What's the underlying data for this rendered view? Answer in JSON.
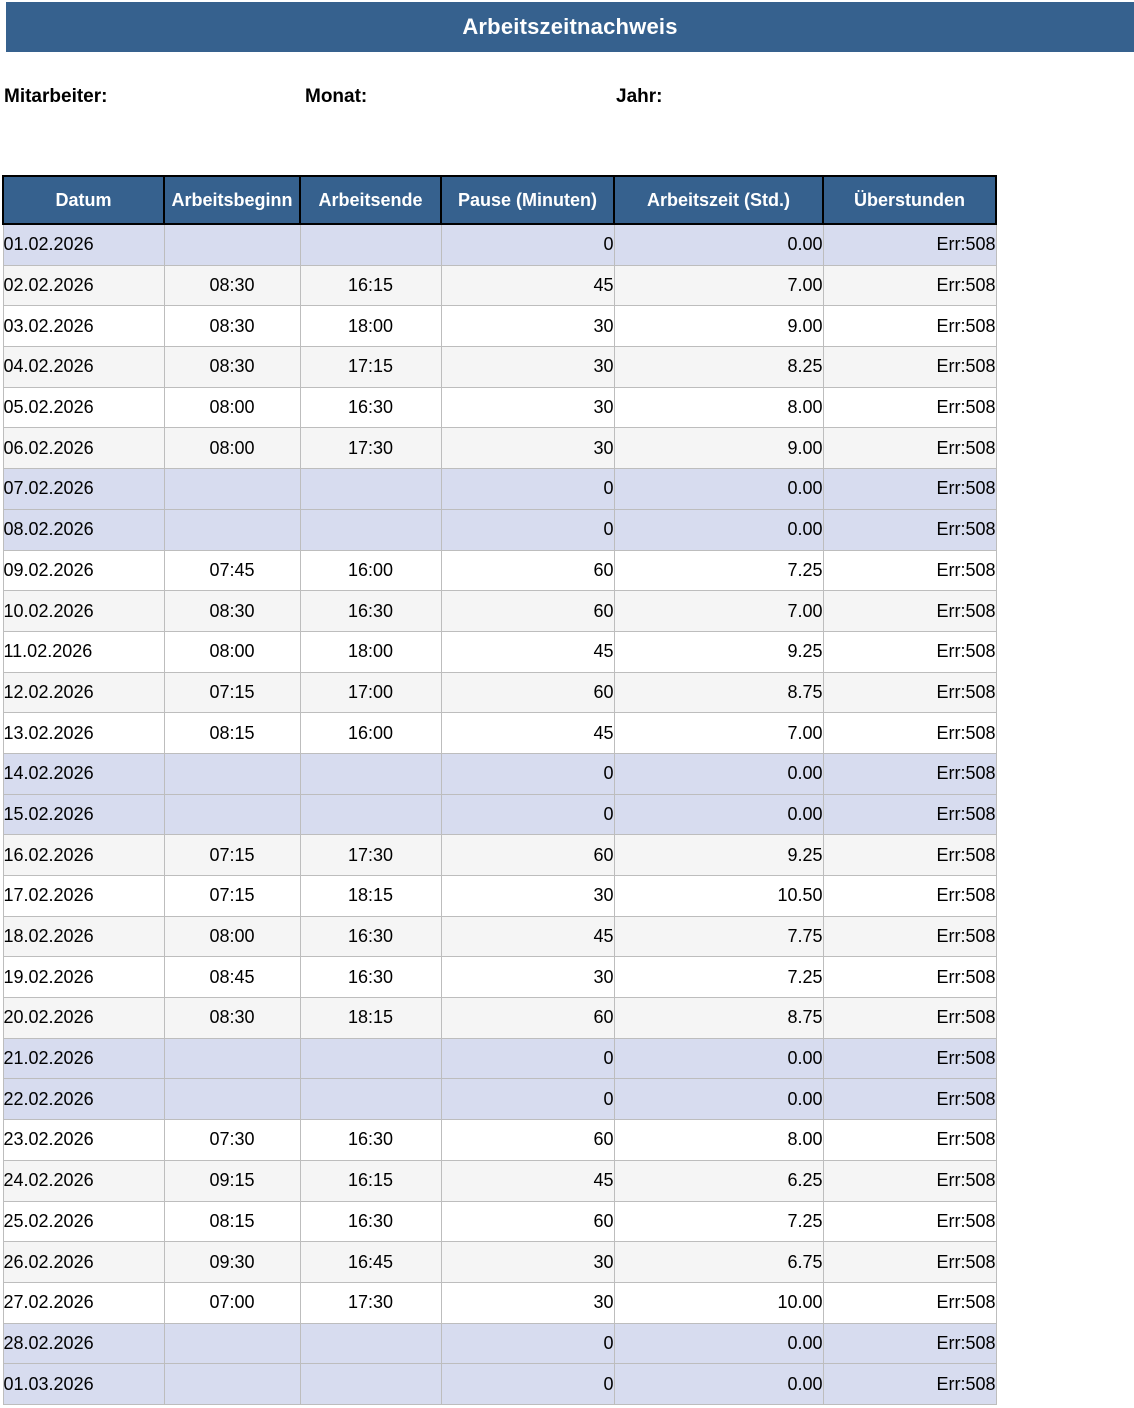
{
  "title": "Arbeitszeitnachweis",
  "fields": {
    "mitarbeiter": "Mitarbeiter:",
    "monat": "Monat:",
    "jahr": "Jahr:"
  },
  "colors": {
    "banner_blue": "#36618E",
    "weekend_row": "#D7DCEF",
    "stripe_row": "#F5F5F5",
    "header_text": "#FFFFFF"
  },
  "table": {
    "columns": [
      "Datum",
      "Arbeitsbeginn",
      "Arbeitsende",
      "Pause (Minuten)",
      "Arbeitszeit (Std.)",
      "Überstunden"
    ],
    "rows": [
      {
        "date": "01.02.2026",
        "begin": "",
        "end": "",
        "pause": "0",
        "hours": "0.00",
        "overtime": "Err:508",
        "weekend": true
      },
      {
        "date": "02.02.2026",
        "begin": "08:30",
        "end": "16:15",
        "pause": "45",
        "hours": "7.00",
        "overtime": "Err:508",
        "weekend": false
      },
      {
        "date": "03.02.2026",
        "begin": "08:30",
        "end": "18:00",
        "pause": "30",
        "hours": "9.00",
        "overtime": "Err:508",
        "weekend": false
      },
      {
        "date": "04.02.2026",
        "begin": "08:30",
        "end": "17:15",
        "pause": "30",
        "hours": "8.25",
        "overtime": "Err:508",
        "weekend": false
      },
      {
        "date": "05.02.2026",
        "begin": "08:00",
        "end": "16:30",
        "pause": "30",
        "hours": "8.00",
        "overtime": "Err:508",
        "weekend": false
      },
      {
        "date": "06.02.2026",
        "begin": "08:00",
        "end": "17:30",
        "pause": "30",
        "hours": "9.00",
        "overtime": "Err:508",
        "weekend": false
      },
      {
        "date": "07.02.2026",
        "begin": "",
        "end": "",
        "pause": "0",
        "hours": "0.00",
        "overtime": "Err:508",
        "weekend": true
      },
      {
        "date": "08.02.2026",
        "begin": "",
        "end": "",
        "pause": "0",
        "hours": "0.00",
        "overtime": "Err:508",
        "weekend": true
      },
      {
        "date": "09.02.2026",
        "begin": "07:45",
        "end": "16:00",
        "pause": "60",
        "hours": "7.25",
        "overtime": "Err:508",
        "weekend": false
      },
      {
        "date": "10.02.2026",
        "begin": "08:30",
        "end": "16:30",
        "pause": "60",
        "hours": "7.00",
        "overtime": "Err:508",
        "weekend": false
      },
      {
        "date": "11.02.2026",
        "begin": "08:00",
        "end": "18:00",
        "pause": "45",
        "hours": "9.25",
        "overtime": "Err:508",
        "weekend": false
      },
      {
        "date": "12.02.2026",
        "begin": "07:15",
        "end": "17:00",
        "pause": "60",
        "hours": "8.75",
        "overtime": "Err:508",
        "weekend": false
      },
      {
        "date": "13.02.2026",
        "begin": "08:15",
        "end": "16:00",
        "pause": "45",
        "hours": "7.00",
        "overtime": "Err:508",
        "weekend": false
      },
      {
        "date": "14.02.2026",
        "begin": "",
        "end": "",
        "pause": "0",
        "hours": "0.00",
        "overtime": "Err:508",
        "weekend": true
      },
      {
        "date": "15.02.2026",
        "begin": "",
        "end": "",
        "pause": "0",
        "hours": "0.00",
        "overtime": "Err:508",
        "weekend": true
      },
      {
        "date": "16.02.2026",
        "begin": "07:15",
        "end": "17:30",
        "pause": "60",
        "hours": "9.25",
        "overtime": "Err:508",
        "weekend": false
      },
      {
        "date": "17.02.2026",
        "begin": "07:15",
        "end": "18:15",
        "pause": "30",
        "hours": "10.50",
        "overtime": "Err:508",
        "weekend": false
      },
      {
        "date": "18.02.2026",
        "begin": "08:00",
        "end": "16:30",
        "pause": "45",
        "hours": "7.75",
        "overtime": "Err:508",
        "weekend": false
      },
      {
        "date": "19.02.2026",
        "begin": "08:45",
        "end": "16:30",
        "pause": "30",
        "hours": "7.25",
        "overtime": "Err:508",
        "weekend": false
      },
      {
        "date": "20.02.2026",
        "begin": "08:30",
        "end": "18:15",
        "pause": "60",
        "hours": "8.75",
        "overtime": "Err:508",
        "weekend": false
      },
      {
        "date": "21.02.2026",
        "begin": "",
        "end": "",
        "pause": "0",
        "hours": "0.00",
        "overtime": "Err:508",
        "weekend": true
      },
      {
        "date": "22.02.2026",
        "begin": "",
        "end": "",
        "pause": "0",
        "hours": "0.00",
        "overtime": "Err:508",
        "weekend": true
      },
      {
        "date": "23.02.2026",
        "begin": "07:30",
        "end": "16:30",
        "pause": "60",
        "hours": "8.00",
        "overtime": "Err:508",
        "weekend": false
      },
      {
        "date": "24.02.2026",
        "begin": "09:15",
        "end": "16:15",
        "pause": "45",
        "hours": "6.25",
        "overtime": "Err:508",
        "weekend": false
      },
      {
        "date": "25.02.2026",
        "begin": "08:15",
        "end": "16:30",
        "pause": "60",
        "hours": "7.25",
        "overtime": "Err:508",
        "weekend": false
      },
      {
        "date": "26.02.2026",
        "begin": "09:30",
        "end": "16:45",
        "pause": "30",
        "hours": "6.75",
        "overtime": "Err:508",
        "weekend": false
      },
      {
        "date": "27.02.2026",
        "begin": "07:00",
        "end": "17:30",
        "pause": "30",
        "hours": "10.00",
        "overtime": "Err:508",
        "weekend": false
      },
      {
        "date": "28.02.2026",
        "begin": "",
        "end": "",
        "pause": "0",
        "hours": "0.00",
        "overtime": "Err:508",
        "weekend": true
      },
      {
        "date": "01.03.2026",
        "begin": "",
        "end": "",
        "pause": "0",
        "hours": "0.00",
        "overtime": "Err:508",
        "weekend": true
      }
    ]
  }
}
